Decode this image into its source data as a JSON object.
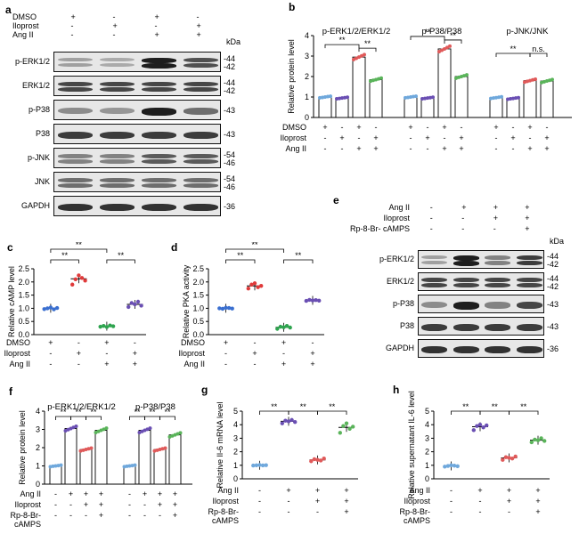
{
  "panels": {
    "a": {
      "label": "a",
      "conditions": [
        {
          "name": "DMSO",
          "signs": [
            "+",
            "-",
            "+",
            "-"
          ]
        },
        {
          "name": "Iloprost",
          "signs": [
            "-",
            "+",
            "-",
            "+"
          ]
        },
        {
          "name": "Ang II",
          "signs": [
            "-",
            "-",
            "+",
            "+"
          ]
        }
      ],
      "kda_header": "kDa",
      "rows": [
        {
          "name": "p-ERK1/2",
          "kda": [
            "-44",
            "-42"
          ],
          "intensity": [
            0.35,
            0.3,
            1.0,
            0.75
          ]
        },
        {
          "name": "ERK1/2",
          "kda": [
            "-44",
            "-42"
          ],
          "intensity": [
            0.8,
            0.8,
            0.8,
            0.8
          ]
        },
        {
          "name": "p-P38",
          "kda": [
            "-43"
          ],
          "intensity": [
            0.45,
            0.4,
            1.0,
            0.6
          ]
        },
        {
          "name": "P38",
          "kda": [
            "-43"
          ],
          "intensity": [
            0.85,
            0.85,
            0.85,
            0.85
          ]
        },
        {
          "name": "p-JNK",
          "kda": [
            "-54",
            "-46"
          ],
          "intensity": [
            0.5,
            0.5,
            0.7,
            0.7
          ]
        },
        {
          "name": "JNK",
          "kda": [
            "-54",
            "-46"
          ],
          "intensity": [
            0.6,
            0.6,
            0.6,
            0.6
          ]
        },
        {
          "name": "GAPDH",
          "kda": [
            "-36"
          ],
          "intensity": [
            0.9,
            0.9,
            0.9,
            0.9
          ]
        }
      ]
    },
    "e": {
      "label": "e",
      "conditions": [
        {
          "name": "Ang II",
          "signs": [
            "-",
            "+",
            "+",
            "+"
          ]
        },
        {
          "name": "Iloprost",
          "signs": [
            "-",
            "-",
            "+",
            "+"
          ]
        },
        {
          "name": "Rp-8-Br-\ncAMPS",
          "signs": [
            "-",
            "-",
            "-",
            "+"
          ]
        }
      ],
      "kda_header": "kDa",
      "rows": [
        {
          "name": "p-ERK1/2",
          "kda": [
            "-44",
            "-42"
          ],
          "intensity": [
            0.35,
            1.0,
            0.5,
            0.85
          ]
        },
        {
          "name": "ERK1/2",
          "kda": [
            "-44",
            "-42"
          ],
          "intensity": [
            0.8,
            0.8,
            0.8,
            0.8
          ]
        },
        {
          "name": "p-P38",
          "kda": [
            "-43"
          ],
          "intensity": [
            0.45,
            1.0,
            0.5,
            0.8
          ]
        },
        {
          "name": "P38",
          "kda": [
            "-43"
          ],
          "intensity": [
            0.85,
            0.85,
            0.85,
            0.85
          ]
        },
        {
          "name": "GAPDH",
          "kda": [
            "-36"
          ],
          "intensity": [
            0.9,
            0.9,
            0.9,
            0.9
          ]
        }
      ]
    }
  },
  "chart_data": [
    {
      "panel": "b",
      "type": "bar",
      "ylabel": "Relative protein level",
      "ylim": [
        0,
        4
      ],
      "yticks": [
        0,
        1,
        2,
        3,
        4
      ],
      "groups": [
        {
          "title": "p-ERK1/2/ERK1/2",
          "values": [
            1.0,
            0.95,
            2.95,
            1.85
          ],
          "sig": [
            {
              "label": "**",
              "from": 0,
              "to": 2
            },
            {
              "label": "**",
              "from": 2,
              "to": 3
            }
          ]
        },
        {
          "title": "p-P38/P38",
          "values": [
            1.0,
            0.95,
            3.35,
            2.0
          ],
          "sig": [
            {
              "label": "**",
              "from": 0,
              "to": 2
            },
            {
              "label": "**",
              "from": 2,
              "to": 3
            }
          ]
        },
        {
          "title": "p-JNK/JNK",
          "values": [
            0.97,
            0.93,
            1.8,
            1.78
          ],
          "sig": [
            {
              "label": "**",
              "from": 0,
              "to": 2
            },
            {
              "label": "n.s.",
              "from": 2,
              "to": 3
            }
          ]
        }
      ],
      "dot_colors": [
        "#6fa8dc",
        "#6a4fb3",
        "#e05a5a",
        "#5ab45a"
      ],
      "conditions": [
        {
          "name": "DMSO",
          "signs": [
            "+",
            "-",
            "+",
            "-"
          ]
        },
        {
          "name": "Iloprost",
          "signs": [
            "-",
            "+",
            "-",
            "+"
          ]
        },
        {
          "name": "Ang II",
          "signs": [
            "-",
            "-",
            "+",
            "+"
          ]
        }
      ]
    },
    {
      "panel": "c",
      "type": "scatter",
      "ylabel": "Relative cAMP level",
      "ylim": [
        0,
        2.5
      ],
      "yticks": [
        "0.0",
        "0.5",
        "1.0",
        "1.5",
        "2.0",
        "2.5"
      ],
      "means": [
        1.0,
        2.12,
        0.32,
        1.15
      ],
      "points": [
        [
          0.97,
          1.0,
          1.03,
          0.96,
          1.01
        ],
        [
          1.9,
          2.1,
          2.25,
          2.15,
          2.05
        ],
        [
          0.3,
          0.33,
          0.29,
          0.35,
          0.32
        ],
        [
          1.05,
          1.2,
          1.15,
          1.25,
          1.1
        ]
      ],
      "dot_colors": [
        "#3a6fd0",
        "#e03a3a",
        "#2ea44f",
        "#6a4fb3"
      ],
      "sig": [
        {
          "label": "**",
          "from": 0,
          "to": 1,
          "level": 0
        },
        {
          "label": "**",
          "from": 2,
          "to": 3,
          "level": 0
        },
        {
          "label": "**",
          "from": 0,
          "to": 2,
          "level": 1
        }
      ],
      "conditions": [
        {
          "name": "DMSO",
          "signs": [
            "+",
            "-",
            "+",
            "-"
          ]
        },
        {
          "name": "Iloprost",
          "signs": [
            "-",
            "+",
            "-",
            "+"
          ]
        },
        {
          "name": "Ang II",
          "signs": [
            "-",
            "-",
            "+",
            "+"
          ]
        }
      ]
    },
    {
      "panel": "d",
      "type": "scatter",
      "ylabel": "Relative PKA activity",
      "ylim": [
        0,
        2.5
      ],
      "yticks": [
        "0.0",
        "0.5",
        "1.0",
        "1.5",
        "2.0",
        "2.5"
      ],
      "means": [
        1.0,
        1.85,
        0.28,
        1.3
      ],
      "points": [
        [
          1.0,
          0.98,
          1.02,
          1.01,
          0.99
        ],
        [
          1.75,
          1.9,
          1.95,
          1.8,
          1.85
        ],
        [
          0.22,
          0.3,
          0.28,
          0.33,
          0.27
        ],
        [
          1.28,
          1.32,
          1.3,
          1.31,
          1.29
        ]
      ],
      "dot_colors": [
        "#3a6fd0",
        "#e03a3a",
        "#2ea44f",
        "#6a4fb3"
      ],
      "sig": [
        {
          "label": "**",
          "from": 0,
          "to": 1,
          "level": 0
        },
        {
          "label": "**",
          "from": 2,
          "to": 3,
          "level": 0
        },
        {
          "label": "**",
          "from": 0,
          "to": 2,
          "level": 1
        }
      ],
      "conditions": [
        {
          "name": "DMSO",
          "signs": [
            "+",
            "-",
            "+",
            "-"
          ]
        },
        {
          "name": "Iloprost",
          "signs": [
            "-",
            "+",
            "-",
            "+"
          ]
        },
        {
          "name": "Ang II",
          "signs": [
            "-",
            "-",
            "+",
            "+"
          ]
        }
      ]
    },
    {
      "panel": "f",
      "type": "bar",
      "ylabel": "Relative protein level",
      "ylim": [
        0,
        4
      ],
      "yticks": [
        0,
        1,
        2,
        3,
        4
      ],
      "groups": [
        {
          "title": "p-ERK1/2/ERK1/2",
          "values": [
            1.0,
            3.05,
            1.9,
            2.95
          ],
          "sig": [
            {
              "label": "**",
              "from": 0,
              "to": 1
            },
            {
              "label": "**",
              "from": 1,
              "to": 2
            },
            {
              "label": "**",
              "from": 2,
              "to": 3
            }
          ]
        },
        {
          "title": "p-P38/P38",
          "values": [
            1.0,
            2.95,
            1.9,
            2.7
          ],
          "sig": [
            {
              "label": "**",
              "from": 0,
              "to": 1
            },
            {
              "label": "**",
              "from": 1,
              "to": 2
            },
            {
              "label": "**",
              "from": 2,
              "to": 3
            }
          ]
        }
      ],
      "dot_colors": [
        "#6fa8dc",
        "#6a4fb3",
        "#e05a5a",
        "#5ab45a"
      ],
      "conditions": [
        {
          "name": "Ang II",
          "signs": [
            "-",
            "+",
            "+",
            "+"
          ]
        },
        {
          "name": "Iloprost",
          "signs": [
            "-",
            "-",
            "+",
            "+"
          ]
        },
        {
          "name": "Rp-8-Br-\ncAMPS",
          "signs": [
            "-",
            "-",
            "-",
            "+"
          ]
        }
      ]
    },
    {
      "panel": "g",
      "type": "scatter",
      "ylabel": "Relative Il-6 mRNA level",
      "ylim": [
        0,
        5
      ],
      "yticks": [
        "0",
        "1",
        "2",
        "3",
        "4",
        "5"
      ],
      "means": [
        1.0,
        4.25,
        1.4,
        3.8
      ],
      "points": [
        [
          0.98,
          1.0,
          1.02,
          0.99,
          1.01
        ],
        [
          4.1,
          4.3,
          4.25,
          4.35,
          4.2
        ],
        [
          1.3,
          1.45,
          1.4,
          1.35,
          1.5
        ],
        [
          3.4,
          3.9,
          4.1,
          3.7,
          3.85
        ]
      ],
      "dot_colors": [
        "#6fa8dc",
        "#6a4fb3",
        "#e05a5a",
        "#5ab45a"
      ],
      "sig": [
        {
          "label": "**",
          "from": 0,
          "to": 1,
          "level": 0
        },
        {
          "label": "**",
          "from": 1,
          "to": 2,
          "level": 0
        },
        {
          "label": "**",
          "from": 2,
          "to": 3,
          "level": 0
        }
      ],
      "conditions": [
        {
          "name": "Ang II",
          "signs": [
            "-",
            "+",
            "+",
            "+"
          ]
        },
        {
          "name": "Iloprost",
          "signs": [
            "-",
            "-",
            "+",
            "+"
          ]
        },
        {
          "name": "Rp-8-Br-\ncAMPS",
          "signs": [
            "-",
            "-",
            "-",
            "+"
          ]
        }
      ]
    },
    {
      "panel": "h",
      "type": "scatter",
      "ylabel": "Relative supernatant IL-6 level",
      "ylim": [
        0,
        5
      ],
      "yticks": [
        "0",
        "1",
        "2",
        "3",
        "4",
        "5"
      ],
      "means": [
        0.95,
        3.85,
        1.55,
        2.85
      ],
      "points": [
        [
          0.9,
          0.95,
          1.0,
          0.97,
          0.93
        ],
        [
          3.6,
          3.9,
          4.0,
          3.8,
          3.95
        ],
        [
          1.4,
          1.6,
          1.55,
          1.5,
          1.65
        ],
        [
          2.7,
          2.9,
          2.85,
          3.0,
          2.8
        ]
      ],
      "dot_colors": [
        "#6fa8dc",
        "#6a4fb3",
        "#e05a5a",
        "#5ab45a"
      ],
      "sig": [
        {
          "label": "**",
          "from": 0,
          "to": 1,
          "level": 0
        },
        {
          "label": "**",
          "from": 1,
          "to": 2,
          "level": 0
        },
        {
          "label": "**",
          "from": 2,
          "to": 3,
          "level": 0
        }
      ],
      "conditions": [
        {
          "name": "Ang II",
          "signs": [
            "-",
            "+",
            "+",
            "+"
          ]
        },
        {
          "name": "Iloprost",
          "signs": [
            "-",
            "-",
            "+",
            "+"
          ]
        },
        {
          "name": "Rp-8-Br-\ncAMPS",
          "signs": [
            "-",
            "-",
            "-",
            "+"
          ]
        }
      ]
    }
  ]
}
